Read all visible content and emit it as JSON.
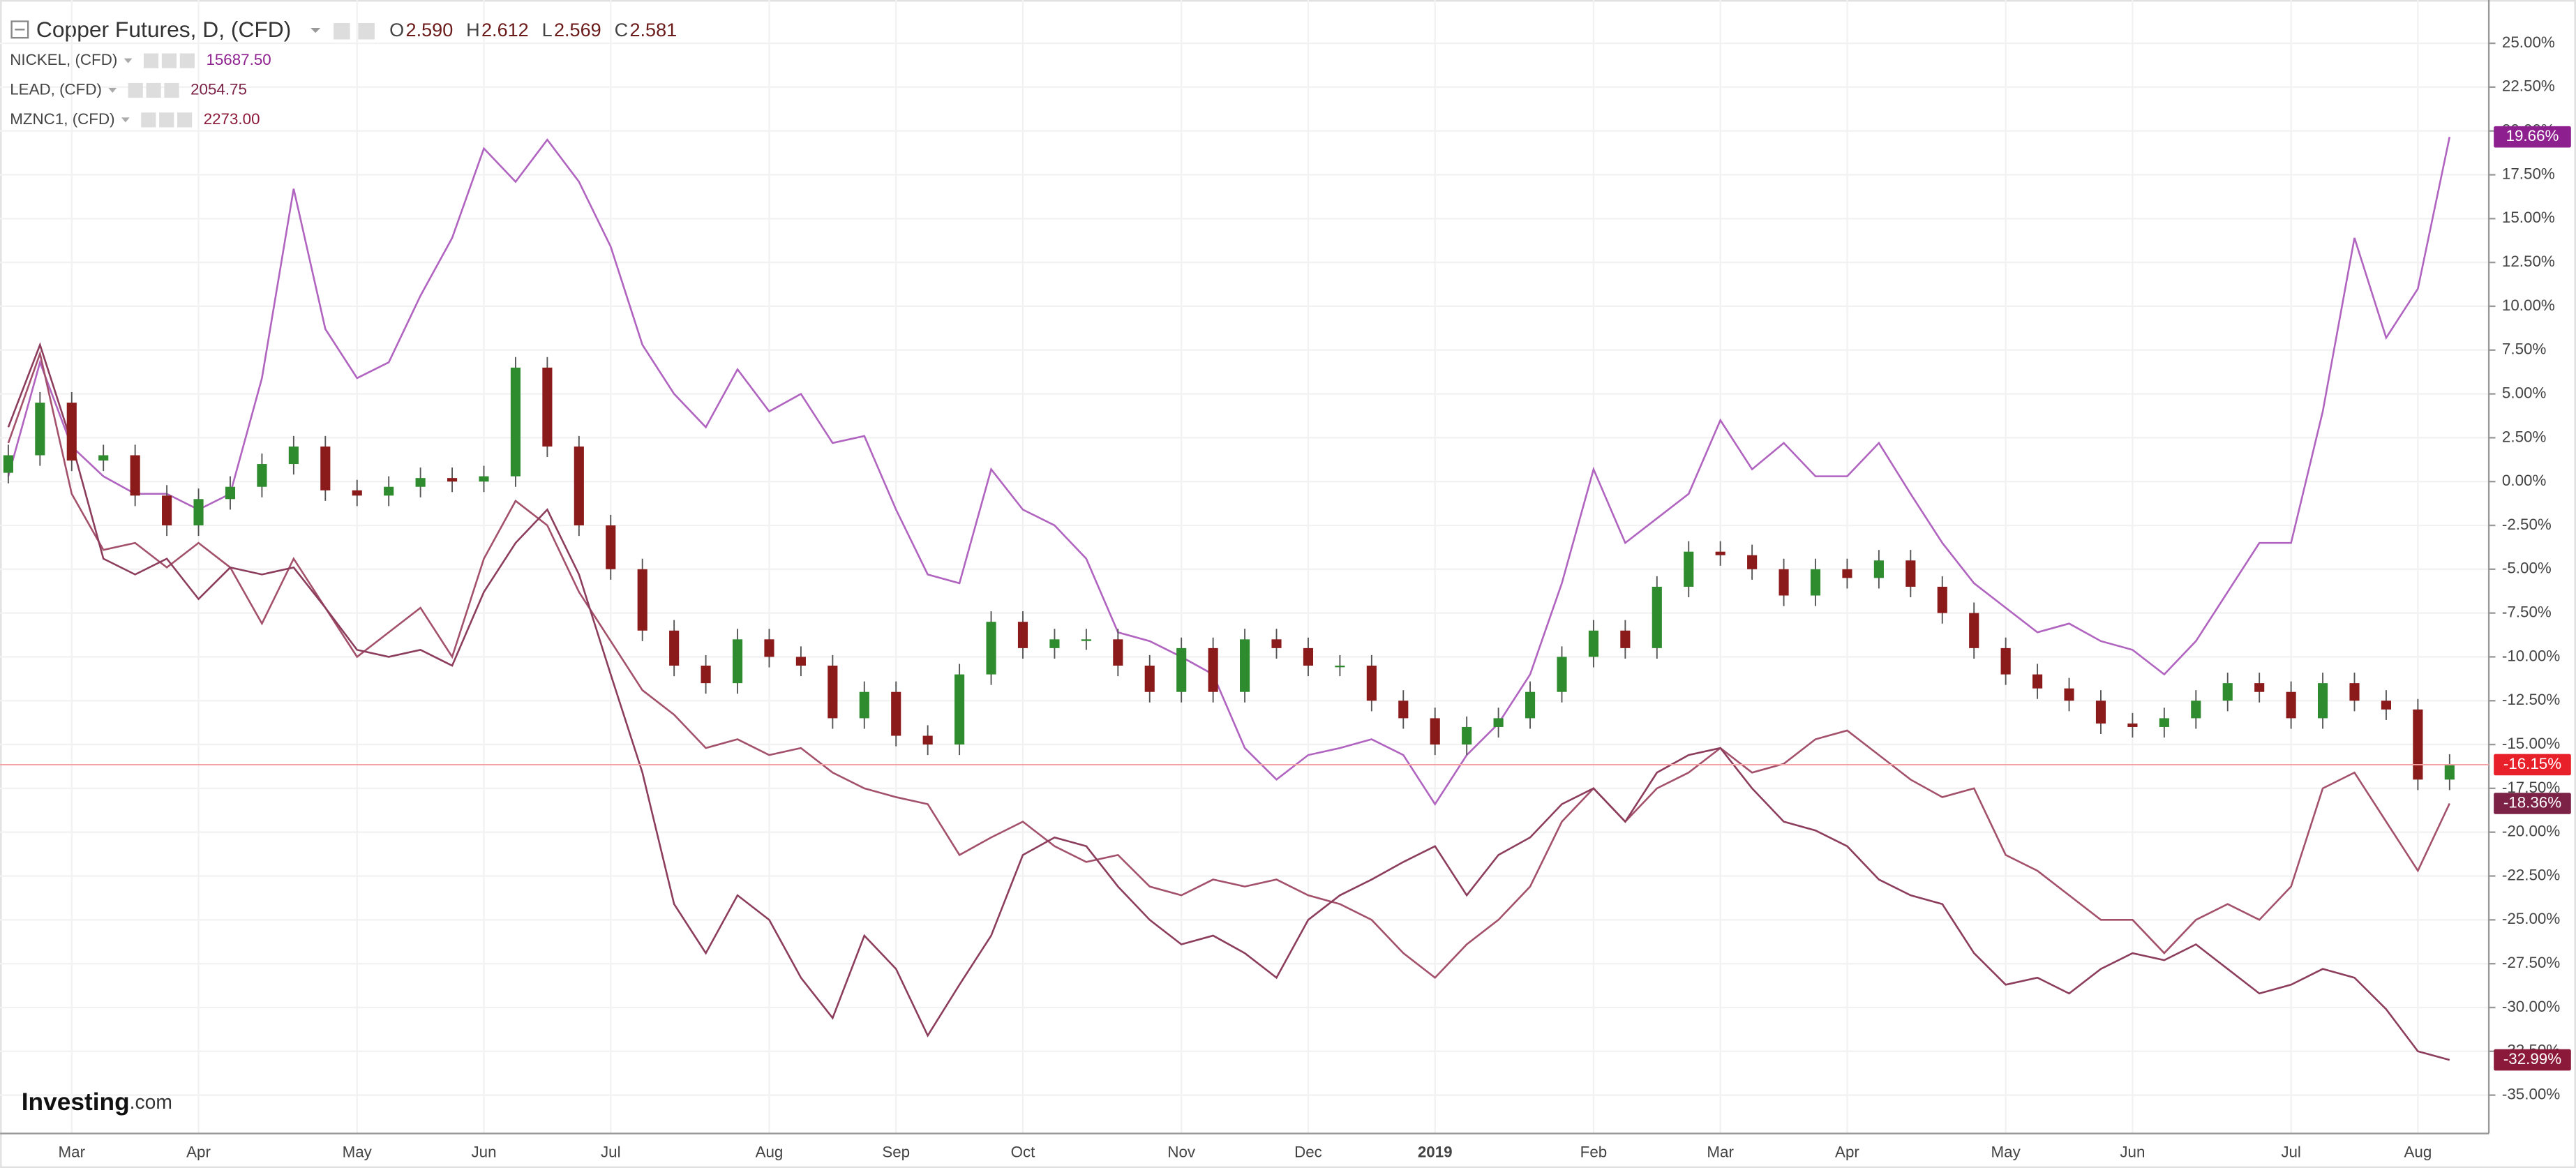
{
  "chart_data": {
    "type": "candlestick",
    "title": "Copper Futures, D, (CFD)",
    "quote": [
      {
        "label": "O",
        "value": "2.590"
      },
      {
        "label": "H",
        "value": "2.612"
      },
      {
        "label": "L",
        "value": "2.569"
      },
      {
        "label": "C",
        "value": "2.581"
      }
    ],
    "logo": "Investing",
    "logo_suffix": ".com",
    "grid": true,
    "price_line": true,
    "ylim": [
      -37,
      27
    ],
    "yticks": [
      {
        "value": 25,
        "label": "25.00%"
      },
      {
        "value": 22.5,
        "label": "22.50%"
      },
      {
        "value": 20,
        "label": "20.00%"
      },
      {
        "value": 17.5,
        "label": "17.50%"
      },
      {
        "value": 15,
        "label": "15.00%"
      },
      {
        "value": 12.5,
        "label": "12.50%"
      },
      {
        "value": 10,
        "label": "10.00%"
      },
      {
        "value": 7.5,
        "label": "7.50%"
      },
      {
        "value": 5,
        "label": "5.00%"
      },
      {
        "value": 2.5,
        "label": "2.50%"
      },
      {
        "value": 0,
        "label": "0.00%"
      },
      {
        "value": -2.5,
        "label": "-2.50%"
      },
      {
        "value": -5,
        "label": "-5.00%"
      },
      {
        "value": -7.5,
        "label": "-7.50%"
      },
      {
        "value": -10,
        "label": "-10.00%"
      },
      {
        "value": -12.5,
        "label": "-12.50%"
      },
      {
        "value": -15,
        "label": "-15.00%"
      },
      {
        "value": -17.5,
        "label": "-17.50%"
      },
      {
        "value": -20,
        "label": "-20.00%"
      },
      {
        "value": -22.5,
        "label": "-22.50%"
      },
      {
        "value": -25,
        "label": "-25.00%"
      },
      {
        "value": -27.5,
        "label": "-27.50%"
      },
      {
        "value": -30,
        "label": "-30.00%"
      },
      {
        "value": -32.5,
        "label": "-32.50%"
      },
      {
        "value": -35,
        "label": "-35.00%"
      }
    ],
    "categories": [
      null,
      null,
      "Mar",
      null,
      null,
      null,
      "Apr",
      null,
      null,
      null,
      null,
      "May",
      null,
      null,
      null,
      "Jun",
      null,
      null,
      null,
      "Jul",
      null,
      null,
      null,
      null,
      "Aug",
      null,
      null,
      null,
      "Sep",
      null,
      null,
      null,
      "Oct",
      null,
      null,
      null,
      null,
      "Nov",
      null,
      null,
      null,
      "Dec",
      null,
      null,
      null,
      "2019",
      null,
      null,
      null,
      null,
      "Feb",
      null,
      null,
      null,
      "Mar",
      null,
      null,
      null,
      "Apr",
      null,
      null,
      null,
      null,
      "May",
      null,
      null,
      null,
      "Jun",
      null,
      null,
      null,
      null,
      "Jul",
      null,
      null,
      null,
      "Aug",
      null
    ],
    "candles": {
      "up_color": "#2e8b2e",
      "down_color": "#8b1a1a",
      "label_color": "#e8202a",
      "open": [
        0.5,
        1.5,
        4.5,
        1.2,
        1.5,
        -0.8,
        -2.5,
        -1.0,
        -0.3,
        1.0,
        2.0,
        -0.5,
        -0.8,
        -0.3,
        0.2,
        0.0,
        0.3,
        6.5,
        2.0,
        -2.5,
        -5.0,
        -8.5,
        -10.5,
        -11.5,
        -9.0,
        -10.0,
        -10.5,
        -13.5,
        -12.0,
        -14.5,
        -15.0,
        -11.0,
        -8.0,
        -9.5,
        -9.0,
        -9.0,
        -10.5,
        -12.0,
        -9.5,
        -12.0,
        -9.0,
        -9.5,
        -10.5,
        -10.5,
        -12.5,
        -13.5,
        -15.0,
        -14.0,
        -13.5,
        -12.0,
        -10.0,
        -8.5,
        -9.5,
        -6.0,
        -4.0,
        -4.2,
        -5.0,
        -6.5,
        -5.0,
        -5.5,
        -4.5,
        -6.0,
        -7.5,
        -9.5,
        -11.0,
        -11.8,
        -12.5,
        -13.8,
        -14.0,
        -13.5,
        -12.5,
        -11.5,
        -12.0,
        -13.5,
        -11.5,
        -12.5,
        -13.0,
        -17.0
      ],
      "high": [
        2.1,
        5.1,
        5.1,
        2.1,
        2.1,
        -0.2,
        -0.4,
        0.3,
        1.6,
        2.6,
        2.6,
        0.1,
        0.3,
        0.8,
        0.8,
        0.9,
        7.1,
        7.1,
        2.6,
        -1.9,
        -4.4,
        -7.9,
        -9.9,
        -8.4,
        -8.4,
        -9.4,
        -9.9,
        -11.4,
        -11.4,
        -13.9,
        -10.4,
        -7.4,
        -7.4,
        -8.4,
        -8.4,
        -8.4,
        -9.9,
        -8.9,
        -8.9,
        -8.4,
        -8.4,
        -8.9,
        -9.9,
        -9.9,
        -11.9,
        -12.9,
        -13.4,
        -12.9,
        -11.4,
        -9.4,
        -7.9,
        -7.9,
        -5.4,
        -3.4,
        -3.4,
        -3.6,
        -4.4,
        -4.4,
        -4.4,
        -3.9,
        -3.9,
        -5.4,
        -6.9,
        -8.9,
        -10.4,
        -11.2,
        -11.9,
        -13.2,
        -12.9,
        -11.9,
        -10.9,
        -10.9,
        -11.4,
        -10.9,
        -10.9,
        -11.9,
        -12.4,
        -15.55
      ],
      "low": [
        -0.1,
        0.9,
        0.6,
        0.6,
        -1.4,
        -3.1,
        -3.1,
        -1.6,
        -0.9,
        0.4,
        -1.1,
        -1.4,
        -1.4,
        -0.9,
        -0.6,
        -0.6,
        -0.3,
        1.4,
        -3.1,
        -5.6,
        -9.1,
        -11.1,
        -12.1,
        -12.1,
        -10.6,
        -11.1,
        -14.1,
        -14.1,
        -15.1,
        -15.6,
        -15.6,
        -11.6,
        -10.1,
        -10.1,
        -9.6,
        -11.1,
        -12.6,
        -12.6,
        -12.6,
        -12.6,
        -10.1,
        -11.1,
        -11.1,
        -13.1,
        -14.1,
        -15.6,
        -15.6,
        -14.6,
        -14.1,
        -12.6,
        -10.6,
        -10.1,
        -10.1,
        -6.6,
        -4.8,
        -5.6,
        -7.1,
        -7.1,
        -6.1,
        -6.1,
        -6.6,
        -8.1,
        -10.1,
        -11.6,
        -12.4,
        -13.1,
        -14.4,
        -14.6,
        -14.6,
        -14.1,
        -13.1,
        -12.6,
        -14.1,
        -14.1,
        -13.1,
        -13.6,
        -17.6,
        -17.6
      ],
      "close": [
        1.5,
        4.5,
        1.2,
        1.5,
        -0.8,
        -2.5,
        -1.0,
        -0.3,
        1.0,
        2.0,
        -0.5,
        -0.8,
        -0.3,
        0.2,
        0.0,
        0.3,
        6.5,
        2.0,
        -2.5,
        -5.0,
        -8.5,
        -10.5,
        -11.5,
        -9.0,
        -10.0,
        -10.5,
        -13.5,
        -12.0,
        -14.5,
        -15.0,
        -11.0,
        -8.0,
        -9.5,
        -9.0,
        -9.0,
        -10.5,
        -12.0,
        -9.5,
        -12.0,
        -9.0,
        -9.5,
        -10.5,
        -10.5,
        -12.5,
        -13.5,
        -15.0,
        -14.0,
        -13.5,
        -12.0,
        -10.0,
        -8.5,
        -9.5,
        -6.0,
        -4.0,
        -4.2,
        -5.0,
        -6.5,
        -5.0,
        -5.5,
        -4.5,
        -6.0,
        -7.5,
        -9.5,
        -11.0,
        -11.8,
        -12.5,
        -13.8,
        -14.0,
        -13.5,
        -12.5,
        -11.5,
        -12.0,
        -13.5,
        -11.5,
        -12.5,
        -13.0,
        -17.0,
        -16.15
      ],
      "value_labels": [
        null,
        null,
        null,
        null,
        null,
        null,
        null,
        null,
        null,
        null,
        null,
        null,
        null,
        null,
        null,
        null,
        null,
        null,
        null,
        null,
        null,
        null,
        null,
        null,
        null,
        null,
        null,
        null,
        null,
        null,
        null,
        null,
        null,
        null,
        null,
        null,
        null,
        null,
        null,
        null,
        null,
        null,
        null,
        null,
        null,
        null,
        null,
        null,
        null,
        null,
        null,
        null,
        null,
        null,
        null,
        null,
        null,
        null,
        null,
        null,
        null,
        null,
        null,
        null,
        null,
        null,
        null,
        null,
        null,
        null,
        null,
        null,
        null,
        null,
        null,
        null,
        null,
        "-16.15%"
      ]
    },
    "series": [
      {
        "name": "NICKEL, (CFD)",
        "price": "15687.50",
        "color": "#b064c0",
        "label_color": "#8e1f8e",
        "values": [
          0.3,
          6.8,
          2,
          0.3,
          -0.7,
          -0.7,
          -1.6,
          -0.7,
          5.9,
          16.7,
          8.7,
          5.9,
          6.8,
          10.6,
          13.9,
          19,
          17.1,
          19.5,
          17.1,
          13.4,
          7.8,
          5,
          3.1,
          6.4,
          4,
          5,
          2.2,
          2.6,
          -1.6,
          -5.3,
          -5.8,
          0.7,
          -1.6,
          -2.5,
          -4.4,
          -8.6,
          -9.1,
          -10,
          -11,
          -15.2,
          -17,
          -15.6,
          -15.2,
          -14.7,
          -15.6,
          -18.4,
          -15.6,
          -13.8,
          -11,
          -5.8,
          0.7,
          -3.5,
          -2.1,
          -0.7,
          3.5,
          0.7,
          2.2,
          0.3,
          0.3,
          2.2,
          -0.7,
          -3.5,
          -5.8,
          -7.2,
          -8.6,
          -8.1,
          -9.1,
          -9.6,
          -11,
          -9.1,
          -6.3,
          -3.5,
          -3.5,
          4,
          13.9,
          8.2,
          11,
          19.66
        ],
        "value_labels": [
          null,
          null,
          null,
          null,
          null,
          null,
          null,
          null,
          null,
          null,
          null,
          null,
          null,
          null,
          null,
          null,
          null,
          null,
          null,
          null,
          null,
          null,
          null,
          null,
          null,
          null,
          null,
          null,
          null,
          null,
          null,
          null,
          null,
          null,
          null,
          null,
          null,
          null,
          null,
          null,
          null,
          null,
          null,
          null,
          null,
          null,
          null,
          null,
          null,
          null,
          null,
          null,
          null,
          null,
          null,
          null,
          null,
          null,
          null,
          null,
          null,
          null,
          null,
          null,
          null,
          null,
          null,
          null,
          null,
          null,
          null,
          null,
          null,
          null,
          null,
          null,
          null,
          "19.66%"
        ]
      },
      {
        "name": "LEAD, (CFD)",
        "price": "2054.75",
        "color": "#a3516b",
        "label_color": "#7b2246",
        "values": [
          2.2,
          7.3,
          -0.7,
          -3.9,
          -3.5,
          -4.9,
          -3.5,
          -4.9,
          -8.1,
          -4.4,
          -7.2,
          -10,
          -8.6,
          -7.2,
          -10,
          -4.4,
          -1.1,
          -2.5,
          -6.3,
          -9.1,
          -11.9,
          -13.3,
          -15.2,
          -14.7,
          -15.6,
          -15.2,
          -16.6,
          -17.5,
          -18,
          -18.4,
          -21.3,
          -20.3,
          -19.4,
          -20.8,
          -21.7,
          -21.3,
          -23.1,
          -23.6,
          -22.7,
          -23.1,
          -22.7,
          -23.6,
          -24.1,
          -25,
          -26.9,
          -28.3,
          -26.4,
          -25,
          -23.1,
          -19.4,
          -17.5,
          -19.4,
          -17.5,
          -16.6,
          -15.2,
          -16.6,
          -16.1,
          -14.7,
          -14.2,
          -15.6,
          -17,
          -18,
          -17.5,
          -21.3,
          -22.2,
          -23.6,
          -25,
          -25,
          -26.9,
          -25,
          -24.1,
          -25,
          -23.1,
          -17.5,
          -16.6,
          -19.4,
          -22.2,
          -18.36
        ],
        "value_labels": [
          null,
          null,
          null,
          null,
          null,
          null,
          null,
          null,
          null,
          null,
          null,
          null,
          null,
          null,
          null,
          null,
          null,
          null,
          null,
          null,
          null,
          null,
          null,
          null,
          null,
          null,
          null,
          null,
          null,
          null,
          null,
          null,
          null,
          null,
          null,
          null,
          null,
          null,
          null,
          null,
          null,
          null,
          null,
          null,
          null,
          null,
          null,
          null,
          null,
          null,
          null,
          null,
          null,
          null,
          null,
          null,
          null,
          null,
          null,
          null,
          null,
          null,
          null,
          null,
          null,
          null,
          null,
          null,
          null,
          null,
          null,
          null,
          null,
          null,
          null,
          null,
          null,
          "-18.36%"
        ]
      },
      {
        "name": "MZNC1, (CFD)",
        "price": "2273.00",
        "color": "#8c3d5c",
        "label_color": "#8b1a3a",
        "values": [
          3.1,
          7.8,
          2.2,
          -4.4,
          -5.3,
          -4.4,
          -6.7,
          -4.9,
          -5.3,
          -4.9,
          -7.2,
          -9.6,
          -10,
          -9.6,
          -10.5,
          -6.3,
          -3.5,
          -1.6,
          -5.3,
          -11,
          -16.6,
          -24.1,
          -26.9,
          -23.6,
          -25,
          -28.3,
          -30.6,
          -25.9,
          -27.8,
          -31.6,
          -28.7,
          -25.9,
          -21.3,
          -20.3,
          -20.8,
          -23.1,
          -25,
          -26.4,
          -25.9,
          -26.9,
          -28.3,
          -25,
          -23.6,
          -22.7,
          -21.7,
          -20.8,
          -23.6,
          -21.3,
          -20.3,
          -18.4,
          -17.5,
          -19.4,
          -16.6,
          -15.6,
          -15.2,
          -17.5,
          -19.4,
          -19.9,
          -20.8,
          -22.7,
          -23.6,
          -24.1,
          -26.9,
          -28.7,
          -28.3,
          -29.2,
          -27.8,
          -26.9,
          -27.3,
          -26.4,
          -27.8,
          -29.2,
          -28.7,
          -27.8,
          -28.3,
          -30.1,
          -32.5,
          -32.99
        ],
        "value_labels": [
          null,
          null,
          null,
          null,
          null,
          null,
          null,
          null,
          null,
          null,
          null,
          null,
          null,
          null,
          null,
          null,
          null,
          null,
          null,
          null,
          null,
          null,
          null,
          null,
          null,
          null,
          null,
          null,
          null,
          null,
          null,
          null,
          null,
          null,
          null,
          null,
          null,
          null,
          null,
          null,
          null,
          null,
          null,
          null,
          null,
          null,
          null,
          null,
          null,
          null,
          null,
          null,
          null,
          null,
          null,
          null,
          null,
          null,
          null,
          null,
          null,
          null,
          null,
          null,
          null,
          null,
          null,
          null,
          null,
          null,
          null,
          null,
          null,
          null,
          null,
          null,
          null,
          "-32.99%"
        ]
      }
    ]
  }
}
